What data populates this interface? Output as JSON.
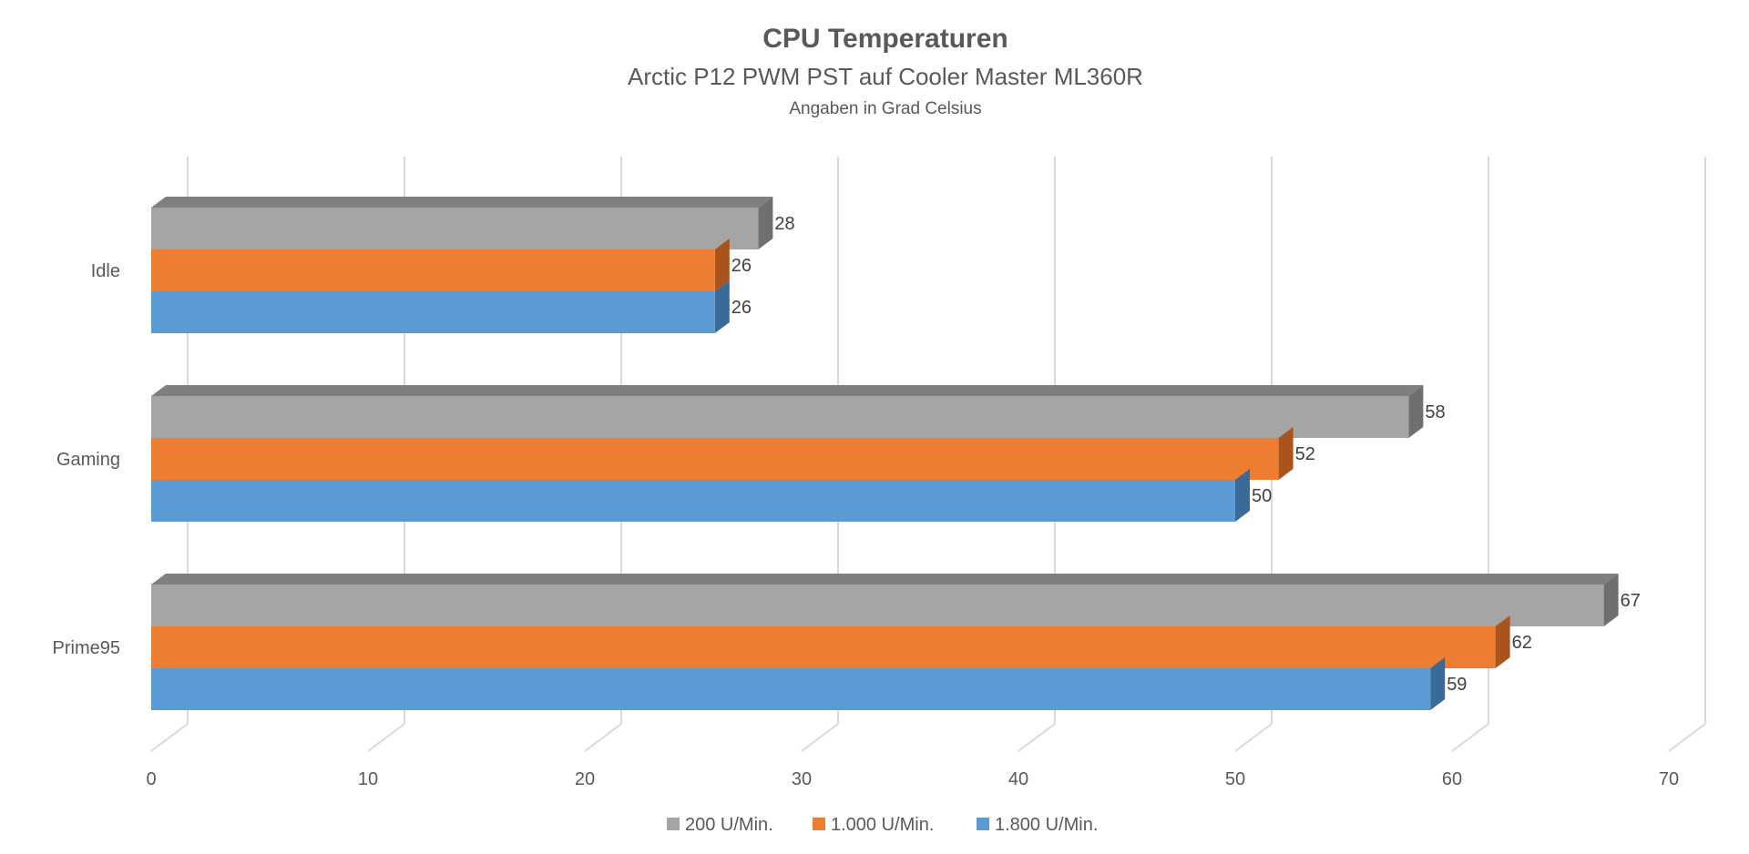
{
  "chart_data": {
    "type": "bar",
    "orientation": "horizontal",
    "style": "3d",
    "title": "CPU Temperaturen",
    "subtitle": "Arctic P12 PWM PST auf Cooler Master ML360R",
    "subtitle2": "Angaben in Grad Celsius",
    "categories": [
      "Idle",
      "Gaming",
      "Prime95"
    ],
    "series": [
      {
        "name": "200 U/Min.",
        "color": "#a5a5a5",
        "side_color": "#6f6f6f",
        "top_color": "#7f7f7f",
        "values": [
          28,
          58,
          67
        ]
      },
      {
        "name": "1.000 U/Min.",
        "color": "#ed7d31",
        "side_color": "#a8541c",
        "top_color": "#c8652a",
        "values": [
          26,
          52,
          62
        ]
      },
      {
        "name": "1.800 U/Min.",
        "color": "#5b9bd5",
        "side_color": "#3a6a99",
        "top_color": "#4a82b7",
        "values": [
          26,
          50,
          59
        ]
      }
    ],
    "xlim": [
      0,
      70
    ],
    "xticks": [
      0,
      10,
      20,
      30,
      40,
      50,
      60,
      70
    ],
    "grid": true,
    "legend_position": "bottom",
    "data_labels": true
  }
}
